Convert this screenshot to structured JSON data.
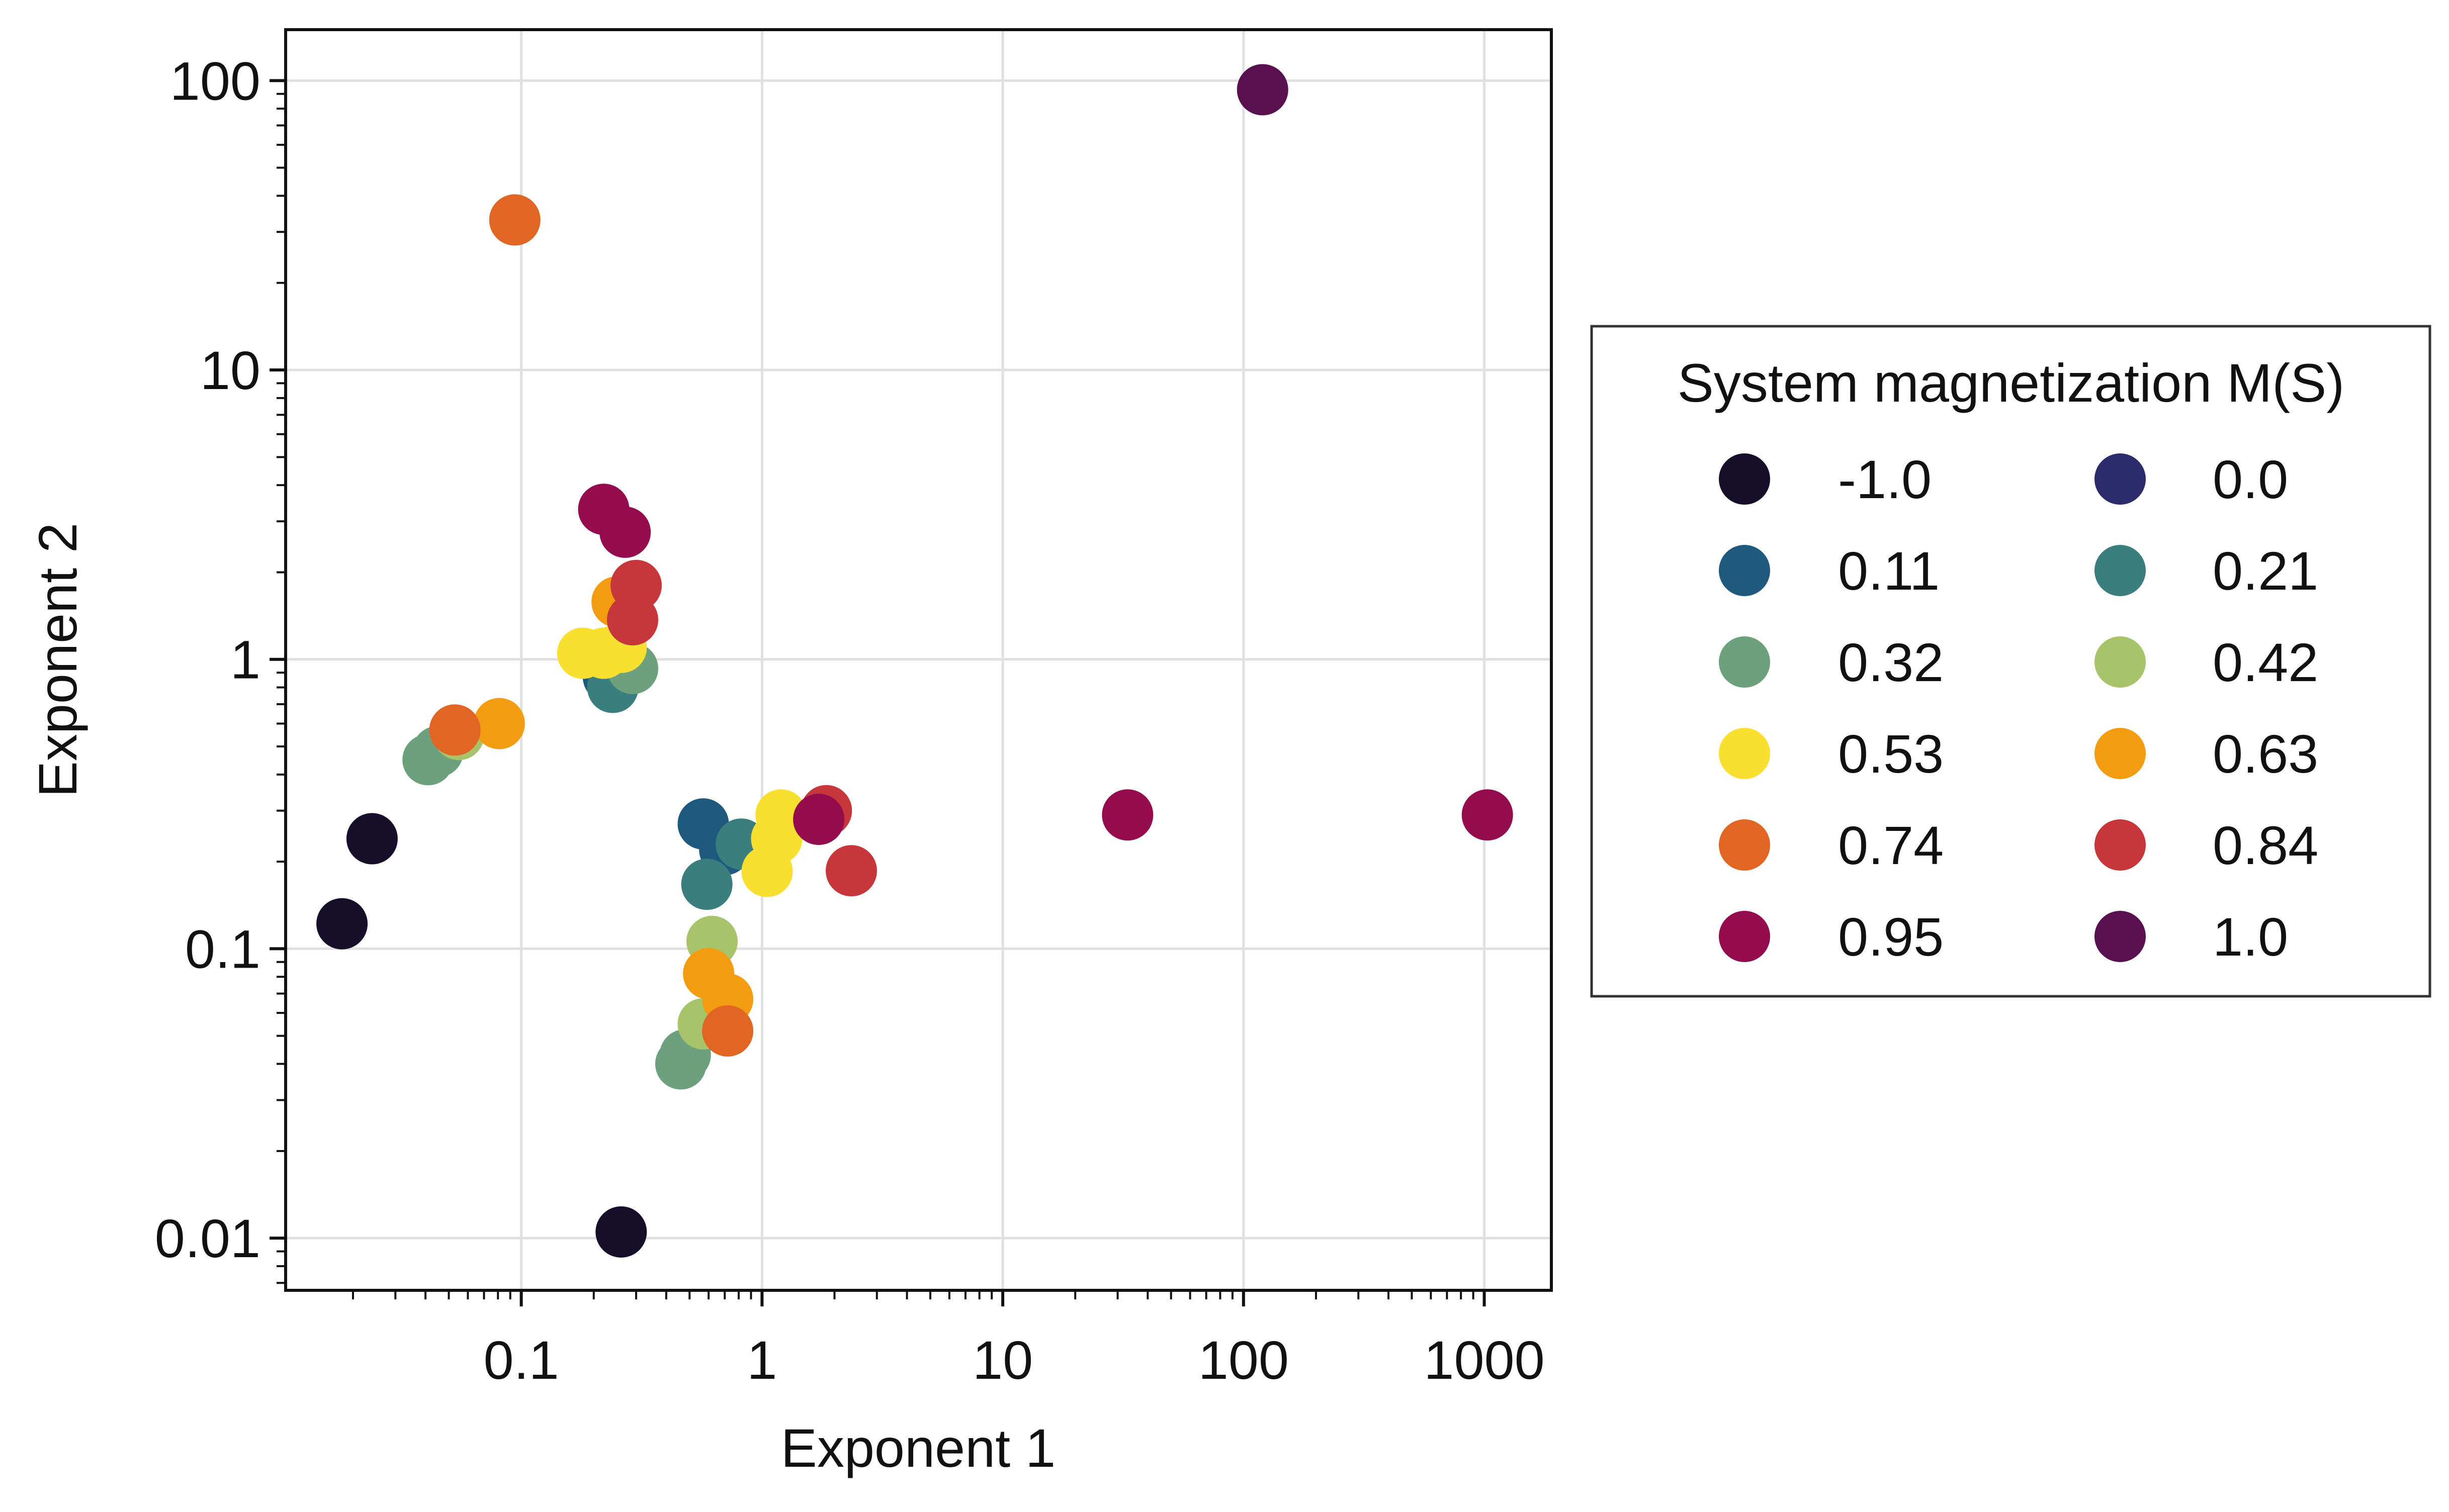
{
  "chart_data": {
    "type": "scatter",
    "title": "",
    "xlabel": "Exponent 1",
    "ylabel": "Exponent 2",
    "xscale": "log",
    "yscale": "log",
    "xlim": [
      0.0105,
      1900
    ],
    "ylim": [
      0.0066,
      150
    ],
    "xticks": [
      0.1,
      1,
      10,
      100,
      1000
    ],
    "xtick_labels": [
      "0.1",
      "1",
      "10",
      "100",
      "1000"
    ],
    "yticks": [
      0.01,
      0.1,
      1,
      10,
      100
    ],
    "ytick_labels": [
      "0.01",
      "0.1",
      "1",
      "10",
      "100"
    ],
    "grid": true,
    "legend": {
      "title": "System magnetization M(S)",
      "placement": "right, outside plot",
      "columns": 2
    },
    "series": [
      {
        "name": "-1.0",
        "color": "#170f2a",
        "points": [
          [
            0.018,
            0.122
          ],
          [
            0.024,
            0.24
          ],
          [
            0.26,
            0.0105
          ]
        ]
      },
      {
        "name": "0.0",
        "color": "#2c2c6c",
        "points": []
      },
      {
        "name": "0.11",
        "color": "#1f5a7e",
        "points": [
          [
            0.57,
            0.27
          ],
          [
            0.7,
            0.22
          ],
          [
            0.23,
            0.87
          ]
        ]
      },
      {
        "name": "0.21",
        "color": "#3a7f7d",
        "points": [
          [
            0.82,
            0.23
          ],
          [
            0.59,
            0.167
          ],
          [
            0.24,
            0.8
          ]
        ]
      },
      {
        "name": "0.32",
        "color": "#6da17d",
        "points": [
          [
            0.041,
            0.45
          ],
          [
            0.045,
            0.48
          ],
          [
            0.29,
            0.93
          ],
          [
            0.46,
            0.04
          ],
          [
            0.48,
            0.043
          ]
        ]
      },
      {
        "name": "0.42",
        "color": "#a7c46a",
        "points": [
          [
            0.055,
            0.55
          ],
          [
            0.62,
            0.106
          ],
          [
            0.57,
            0.055
          ]
        ]
      },
      {
        "name": "0.53",
        "color": "#f9df30",
        "points": [
          [
            0.18,
            1.05
          ],
          [
            0.22,
            1.05
          ],
          [
            0.26,
            1.1
          ],
          [
            1.2,
            0.29
          ],
          [
            1.15,
            0.24
          ],
          [
            1.05,
            0.185
          ]
        ]
      },
      {
        "name": "0.63",
        "color": "#f39c12",
        "points": [
          [
            0.081,
            0.6
          ],
          [
            0.25,
            1.58
          ],
          [
            0.6,
            0.082
          ],
          [
            0.72,
            0.067
          ]
        ]
      },
      {
        "name": "0.74",
        "color": "#e16523",
        "points": [
          [
            0.094,
            33
          ],
          [
            0.053,
            0.57
          ],
          [
            0.72,
            0.052
          ]
        ]
      },
      {
        "name": "0.84",
        "color": "#c6363a",
        "points": [
          [
            0.3,
            1.8
          ],
          [
            0.29,
            1.37
          ],
          [
            1.85,
            0.3
          ],
          [
            2.35,
            0.186
          ]
        ]
      },
      {
        "name": "0.95",
        "color": "#940c4d",
        "points": [
          [
            0.22,
            3.3
          ],
          [
            0.27,
            2.75
          ],
          [
            1.72,
            0.28
          ],
          [
            33,
            0.29
          ],
          [
            1030,
            0.29
          ]
        ]
      },
      {
        "name": "1.0",
        "color": "#59104f",
        "points": [
          [
            120,
            93
          ]
        ]
      }
    ]
  }
}
